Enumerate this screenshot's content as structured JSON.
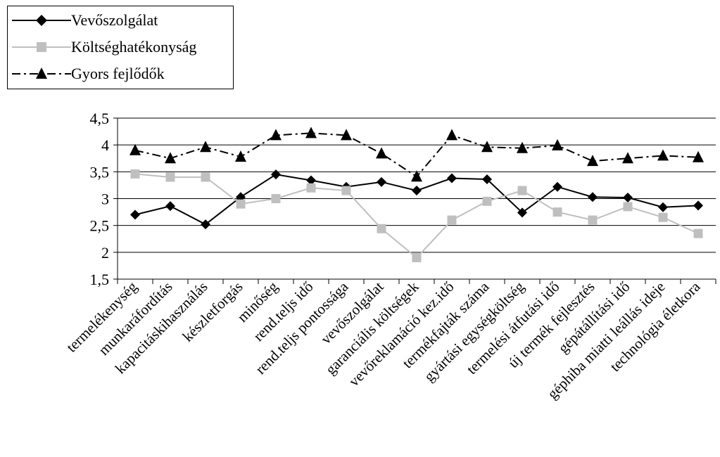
{
  "chart_data": {
    "type": "line",
    "title": "",
    "xlabel": "",
    "ylabel": "",
    "ylim": [
      1.5,
      4.5
    ],
    "yticks": [
      "1,5",
      "2",
      "2,5",
      "3",
      "3,5",
      "4",
      "4,5"
    ],
    "ytick_values": [
      1.5,
      2,
      2.5,
      3,
      3.5,
      4,
      4.5
    ],
    "grid": "horizontal",
    "legend_position": "top-left",
    "categories": [
      "termelékenység",
      "munkaráfordítás",
      "kapacitáskihasználás",
      "készletforgás",
      "minőség",
      "rend.teljs idő",
      "rend.teljs pontossága",
      "vevőszolgálat",
      "garanciális költségek",
      "vevőreklamáció kez.idő",
      "termékfajták száma",
      "gyártási egységköltség",
      "termelési átfutási idő",
      "új termék fejlesztés",
      "gépátállítási idő",
      "géphiba miatti leállás ideje",
      "technológia életkora"
    ],
    "series": [
      {
        "name": "Vevőszolgálat",
        "color": "#000000",
        "dash": "solid",
        "marker": "diamond",
        "values": [
          2.7,
          2.86,
          2.52,
          3.03,
          3.45,
          3.34,
          3.22,
          3.31,
          3.15,
          3.38,
          3.36,
          2.74,
          3.22,
          3.03,
          3.02,
          2.84,
          2.87
        ]
      },
      {
        "name": "Költséghatékonyság",
        "color": "#bfbfbf",
        "dash": "solid",
        "marker": "square",
        "values": [
          3.46,
          3.4,
          3.4,
          2.9,
          3.0,
          3.2,
          3.15,
          2.44,
          1.9,
          2.6,
          2.95,
          3.15,
          2.75,
          2.6,
          2.85,
          2.65,
          2.35
        ]
      },
      {
        "name": "Gyors fejlődők",
        "color": "#000000",
        "dash": "dashdot",
        "marker": "triangle",
        "values": [
          3.9,
          3.75,
          3.96,
          3.78,
          4.18,
          4.22,
          4.18,
          3.84,
          3.41,
          4.18,
          3.96,
          3.94,
          3.99,
          3.7,
          3.75,
          3.8,
          3.77
        ]
      }
    ]
  }
}
